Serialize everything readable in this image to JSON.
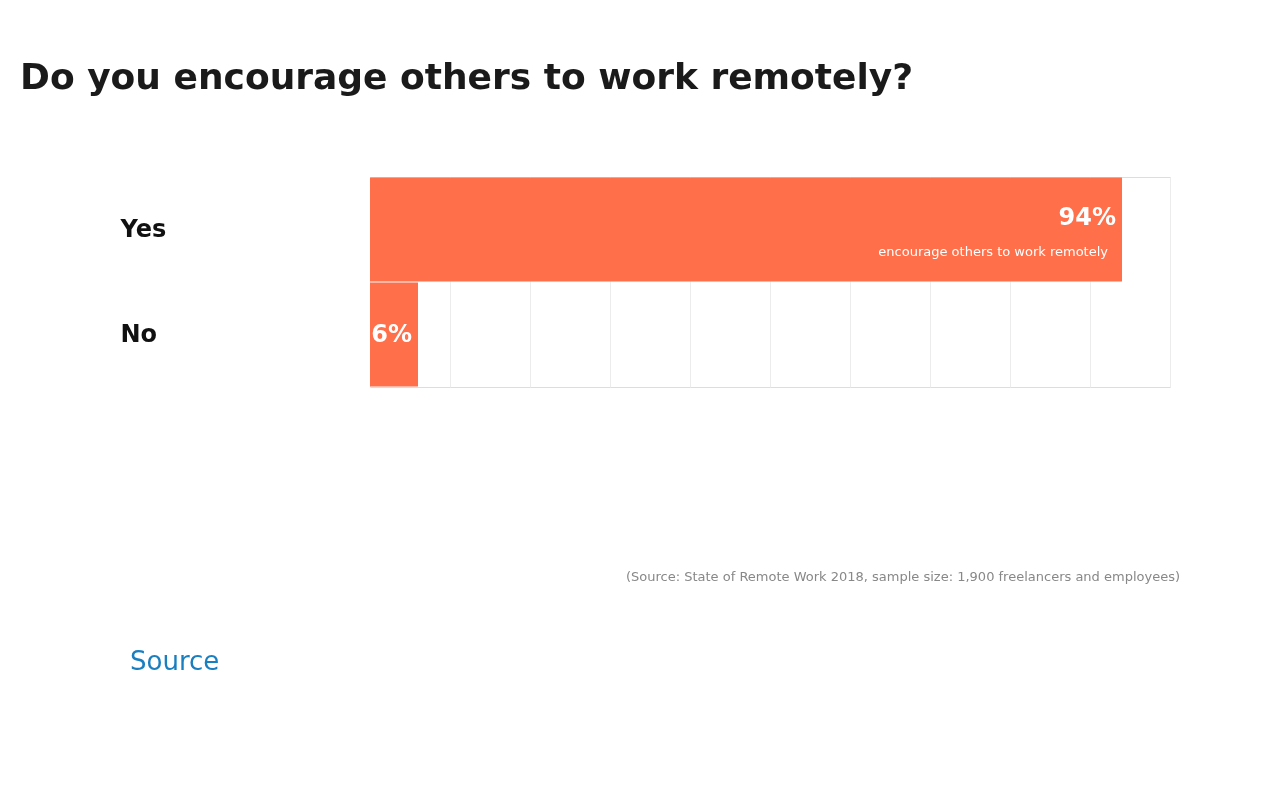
{
  "chart_data": {
    "type": "bar",
    "orientation": "horizontal",
    "title": "Do you encourage others to work remotely?",
    "categories": [
      "Yes",
      "No"
    ],
    "values": [
      94,
      6
    ],
    "color": "#ff6f4a",
    "value_labels": [
      "94%",
      "6%"
    ],
    "xlim": [
      0,
      100
    ],
    "xticks": [
      {
        "value": 0,
        "label": null
      },
      {
        "value": 10,
        "label": null
      },
      {
        "value": 20,
        "label": null
      },
      {
        "value": 30,
        "label": null
      },
      {
        "value": 40,
        "label": null
      },
      {
        "value": 50,
        "label": null
      },
      {
        "value": 60,
        "label": null
      },
      {
        "value": 70,
        "label": null
      },
      {
        "value": 80,
        "label": null
      },
      {
        "value": 90,
        "label": null
      },
      {
        "value": 100,
        "label": null
      }
    ],
    "grid": "x",
    "tick_labels": "y",
    "annotations": [
      {
        "text": "encourage others to work remotely",
        "x": 94,
        "y": "Yes"
      },
      "(Source: State of Remote Work 2018, sample size: 1,900 freelancers and employees)",
      "Source"
    ]
  }
}
